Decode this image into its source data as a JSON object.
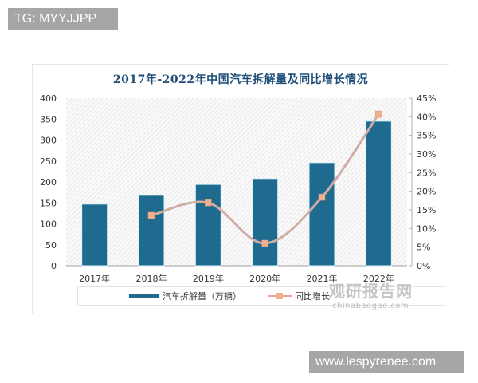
{
  "watermarks": {
    "top": "TG: MYYJJPP",
    "bottom": "www.lespyrenee.com"
  },
  "chart_data": {
    "type": "bar",
    "title": "2017年-2022年中国汽车拆解量及同比增长情况",
    "categories": [
      "2017年",
      "2018年",
      "2019年",
      "2020年",
      "2021年",
      "2022年"
    ],
    "series": [
      {
        "name": "汽车拆解量（万辆）",
        "type": "bar",
        "axis": "left",
        "color": "#1f6a8f",
        "values": [
          147,
          168,
          194,
          208,
          246,
          345
        ]
      },
      {
        "name": "同比增长",
        "type": "line",
        "axis": "right",
        "color": "#e8a38b",
        "values": [
          null,
          13.5,
          16.9,
          6.0,
          18.4,
          40.7
        ]
      }
    ],
    "ylim_left": [
      0,
      400
    ],
    "yticks_left": [
      "0",
      "50",
      "100",
      "150",
      "200",
      "250",
      "300",
      "350",
      "400"
    ],
    "ylim_right": [
      0,
      45
    ],
    "yticks_right": [
      "0%",
      "5%",
      "10%",
      "15%",
      "20%",
      "25%",
      "30%",
      "35%",
      "40%",
      "45%"
    ],
    "xlabel": "",
    "ylabel": "",
    "grid": false,
    "legend_position": "bottom"
  },
  "legend": {
    "bar_label": "汽车拆解量（万辆）",
    "line_label": "同比增长"
  },
  "logo": {
    "cn": "观研报告网",
    "en": "chinabaogao.com"
  }
}
